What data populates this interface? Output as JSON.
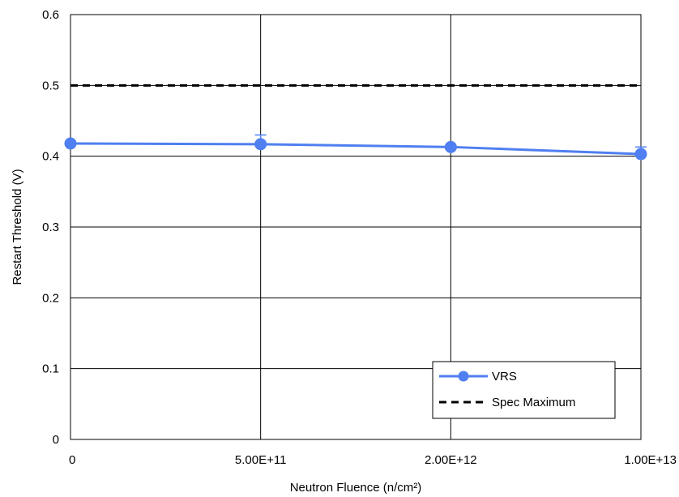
{
  "chart_data": {
    "type": "line",
    "title": "",
    "xlabel": "Neutron Fluence (n/cm²)",
    "ylabel": "Restart Threshold (V)",
    "categories": [
      "0",
      "5.00E+11",
      "2.00E+12",
      "1.00E+13"
    ],
    "ylim": [
      0,
      0.6
    ],
    "yticks": [
      "0",
      "0.1",
      "0.2",
      "0.3",
      "0.4",
      "0.5",
      "0.6"
    ],
    "grid": true,
    "legend_position": "bottom-right",
    "series": [
      {
        "name": "VRS",
        "values": [
          0.418,
          0.417,
          0.413,
          0.403
        ],
        "error_high": [
          0.418,
          0.43,
          0.415,
          0.413
        ],
        "color": "#4f7ff0",
        "style": "solid-with-circle-markers"
      },
      {
        "name": "Spec Maximum",
        "values": [
          0.5,
          0.5,
          0.5,
          0.5
        ],
        "color": "#000000",
        "style": "dashed"
      }
    ]
  }
}
